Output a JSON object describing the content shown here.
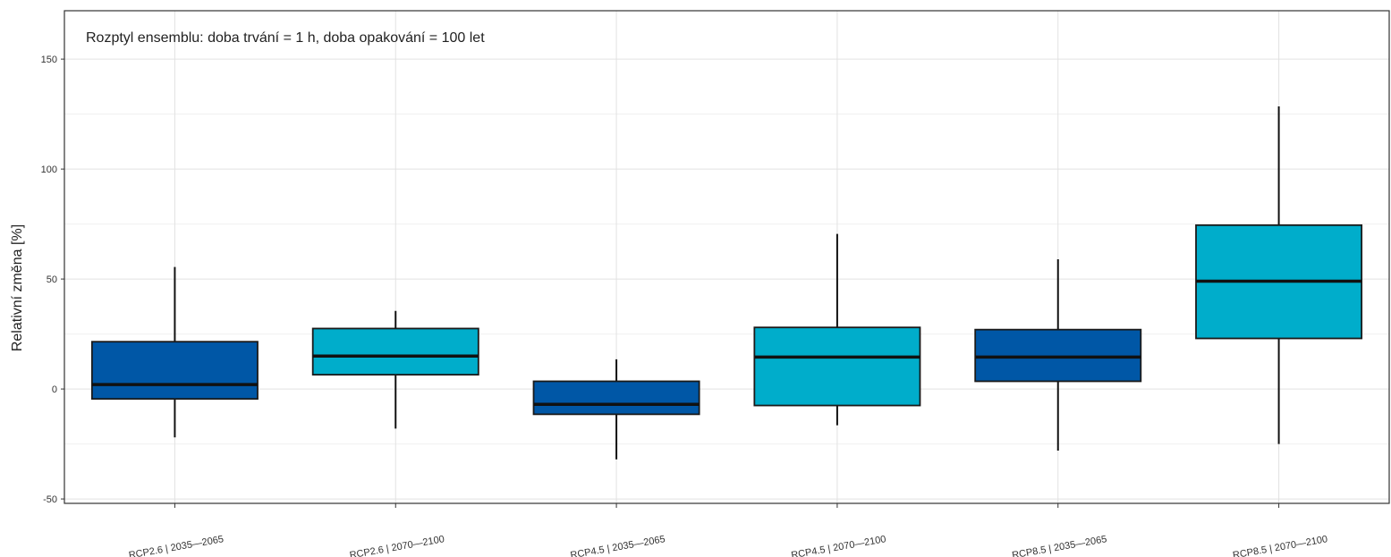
{
  "chart_data": {
    "type": "boxplot",
    "title": "",
    "annotation": "Rozptyl ensemblu: doba trvání = 1 h, doba opakování = 100 let",
    "xlabel": "",
    "ylabel": "Relativní změna [%]",
    "ylim": [
      -52,
      172
    ],
    "yticks": [
      -50,
      0,
      50,
      100,
      150
    ],
    "grid": true,
    "legend": "none",
    "categories": [
      "RCP2.6 | 2035—2065",
      "RCP2.6 | 2070—2100",
      "RCP4.5 | 2035—2065",
      "RCP4.5 | 2070—2100",
      "RCP8.5 | 2035—2065",
      "RCP8.5 | 2070—2100"
    ],
    "boxes": [
      {
        "min": -22,
        "q1": -4.5,
        "median": 2,
        "q3": 21.5,
        "max": 55.5,
        "color": "#0057A6"
      },
      {
        "min": -18,
        "q1": 6.5,
        "median": 15,
        "q3": 27.5,
        "max": 35.5,
        "color": "#00ADCB"
      },
      {
        "min": -32,
        "q1": -11.5,
        "median": -7,
        "q3": 3.5,
        "max": 13.5,
        "color": "#0057A6"
      },
      {
        "min": -16.5,
        "q1": -7.5,
        "median": 14.5,
        "q3": 28,
        "max": 70.5,
        "color": "#00ADCB"
      },
      {
        "min": -28,
        "q1": 3.5,
        "median": 14.5,
        "q3": 27,
        "max": 59,
        "color": "#0057A6"
      },
      {
        "min": -25,
        "q1": 23,
        "median": 49,
        "q3": 74.5,
        "max": 128.5,
        "color": "#00ADCB"
      }
    ]
  }
}
